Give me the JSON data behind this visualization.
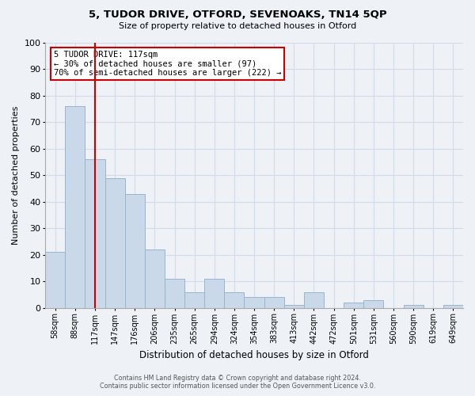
{
  "title": "5, TUDOR DRIVE, OTFORD, SEVENOAKS, TN14 5QP",
  "subtitle": "Size of property relative to detached houses in Otford",
  "xlabel": "Distribution of detached houses by size in Otford",
  "ylabel": "Number of detached properties",
  "bar_color": "#c9d9ea",
  "bar_edge_color": "#9ab4cc",
  "categories": [
    "58sqm",
    "88sqm",
    "117sqm",
    "147sqm",
    "176sqm",
    "206sqm",
    "235sqm",
    "265sqm",
    "294sqm",
    "324sqm",
    "354sqm",
    "383sqm",
    "413sqm",
    "442sqm",
    "472sqm",
    "501sqm",
    "531sqm",
    "560sqm",
    "590sqm",
    "619sqm",
    "649sqm"
  ],
  "values": [
    21,
    76,
    56,
    49,
    43,
    22,
    11,
    6,
    11,
    6,
    4,
    4,
    1,
    6,
    0,
    2,
    3,
    0,
    1,
    0,
    1
  ],
  "highlight_x": "117sqm",
  "highlight_color": "#cc0000",
  "annotation_title": "5 TUDOR DRIVE: 117sqm",
  "annotation_line2": "← 30% of detached houses are smaller (97)",
  "annotation_line3": "70% of semi-detached houses are larger (222) →",
  "annotation_box_color": "white",
  "annotation_box_edge_color": "#cc0000",
  "ylim": [
    0,
    100
  ],
  "yticks": [
    0,
    10,
    20,
    30,
    40,
    50,
    60,
    70,
    80,
    90,
    100
  ],
  "footer_line1": "Contains HM Land Registry data © Crown copyright and database right 2024.",
  "footer_line2": "Contains public sector information licensed under the Open Government Licence v3.0.",
  "background_color": "#eef2f7",
  "grid_color": "#d0dce8"
}
